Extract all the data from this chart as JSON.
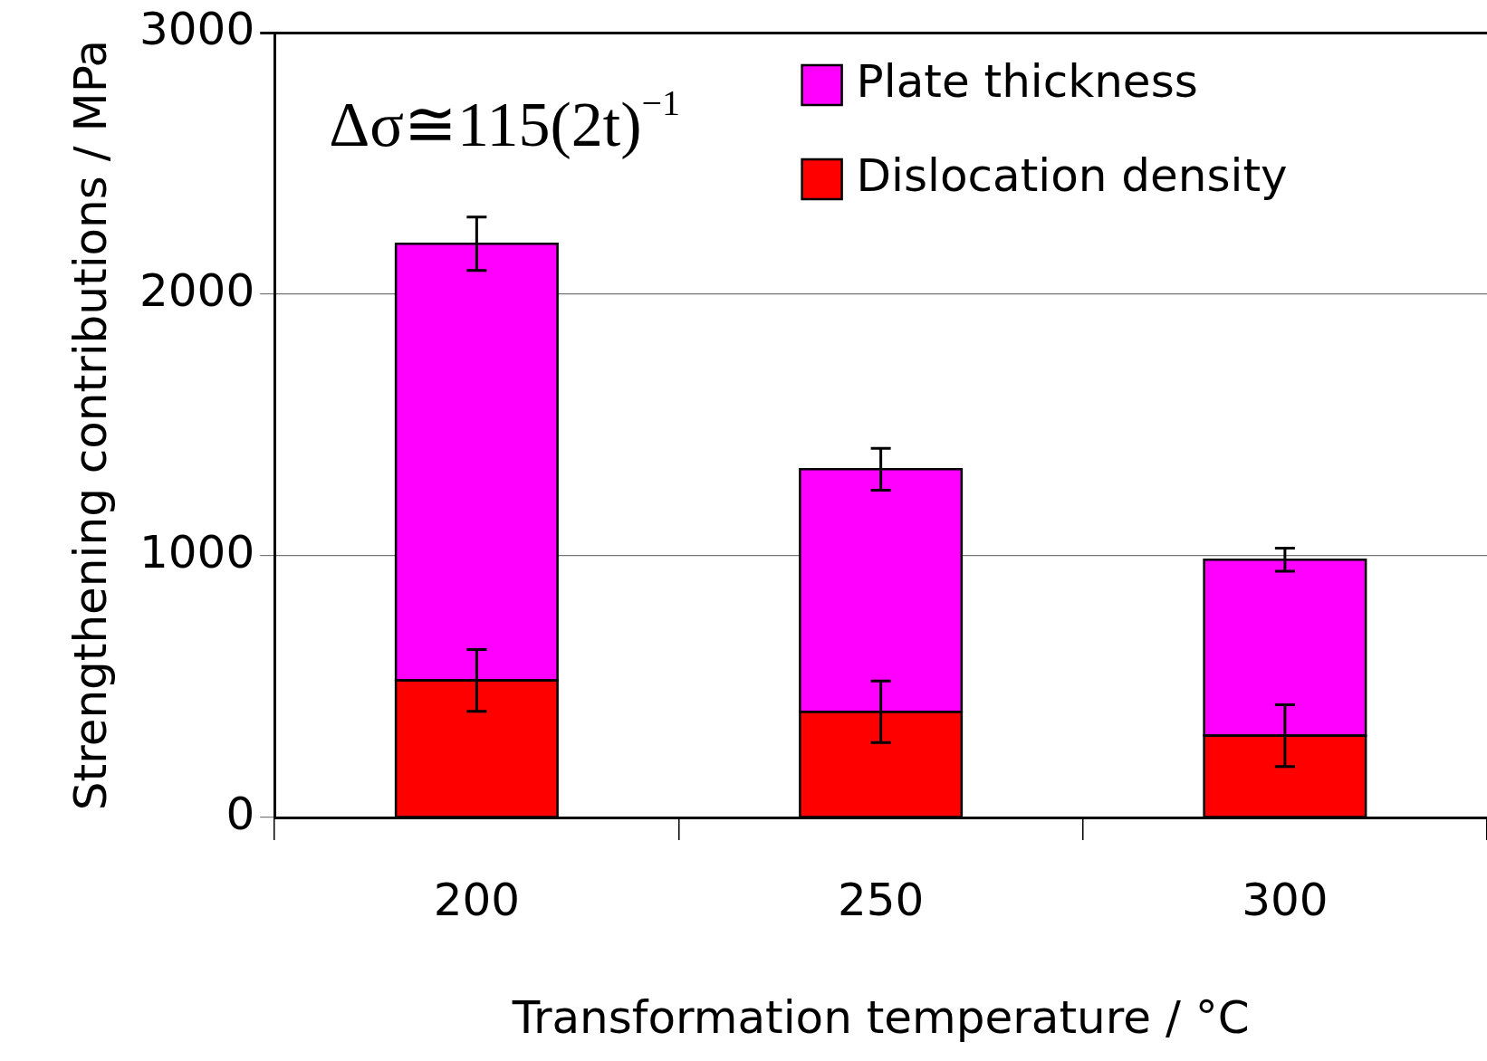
{
  "chart_data": {
    "type": "bar",
    "stacked": true,
    "xlabel": "Transformation temperature / °C",
    "ylabel": "Strengthening contributions / MPa",
    "categories": [
      "200",
      "250",
      "300"
    ],
    "series": [
      {
        "name": "Dislocation density",
        "color": "#ff0000",
        "values": [
          524,
          404,
          313
        ],
        "errors": [
          118,
          118,
          118
        ]
      },
      {
        "name": "Plate thickness",
        "color": "#ff00ff",
        "values": [
          1669,
          927,
          672
        ],
        "errors": [
          102,
          80,
          44
        ]
      }
    ],
    "ylim": [
      0,
      3000
    ],
    "yticks": [
      0,
      1000,
      2000,
      3000
    ],
    "grid": "y",
    "legend": "top right",
    "annotations": [
      "Δσ≅115(2t)$^{−1}$"
    ]
  }
}
